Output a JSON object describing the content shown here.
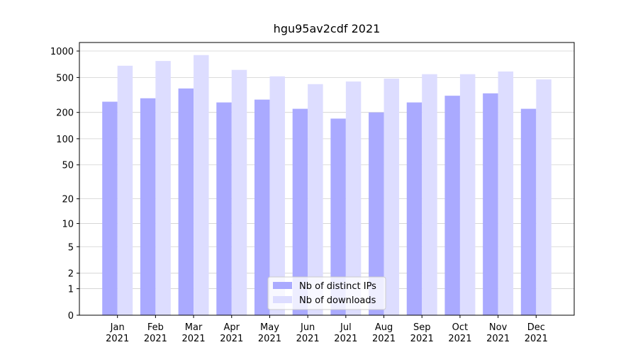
{
  "chart_data": {
    "type": "bar",
    "title": "hgu95av2cdf 2021",
    "categories": [
      "Jan\n2021",
      "Feb\n2021",
      "Mar\n2021",
      "Apr\n2021",
      "May\n2021",
      "Jun\n2021",
      "Jul\n2021",
      "Aug\n2021",
      "Sep\n2021",
      "Oct\n2021",
      "Nov\n2021",
      "Dec\n2021"
    ],
    "series": [
      {
        "name": "Nb of distinct IPs",
        "color": "#aaaaff",
        "values": [
          265,
          290,
          375,
          260,
          280,
          220,
          170,
          200,
          260,
          310,
          330,
          220
        ]
      },
      {
        "name": "Nb of downloads",
        "color": "#ddddff",
        "values": [
          680,
          770,
          900,
          610,
          515,
          420,
          450,
          485,
          545,
          545,
          585,
          475
        ]
      }
    ],
    "yscale": "log1p",
    "ylim": [
      0,
      1250
    ],
    "yticks": [
      0,
      1,
      2,
      5,
      10,
      20,
      50,
      100,
      200,
      500,
      1000
    ],
    "grid": true,
    "legend_position": "lower center"
  }
}
